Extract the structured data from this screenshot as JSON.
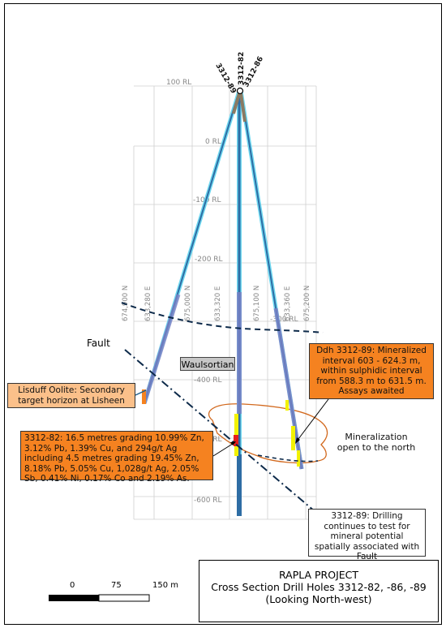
{
  "project_title": "RAPLA PROJECT",
  "section_title": "Cross Section Drill Holes 3312-82, -86, -89",
  "view_direction": "(Looking North-west)",
  "holes": [
    "3312-89",
    "3312-82",
    "3312-86"
  ],
  "rl_labels": [
    "100 RL",
    "0 RL",
    "-100 RL",
    "-200 RL",
    "-300 RL",
    "-400 RL",
    "-500 RL",
    "-600 RL"
  ],
  "northing_labels": [
    "674,900 N",
    "675,000 N",
    "675,100 N",
    "675,200 N"
  ],
  "easting_labels": [
    "633,280 E",
    "633,320 E",
    "633,360 E"
  ],
  "labels": {
    "fault": "Fault",
    "waulsortian": "Waulsortian",
    "mineralization": "Mineralization open to the north"
  },
  "callouts": {
    "hole_82": "3312-82: 16.5 metres grading 10.99% Zn, 3.12% Pb, 1.39% Cu, and 294g/t Ag including 4.5 metres grading 19.45% Zn, 8.18% Pb, 5.05% Cu, 1,028g/t Ag, 2.05% Sb, 0.41% Ni, 0.17% Co and 2.19% As.",
    "hole_89": "Ddh 3312-89: Mineralized interval 603 - 624.3 m, within sulphidic interval from 588.3 m to 631.5 m. Assays awaited",
    "lisduff": "Lisduff Oolite: Secondary target horizon at Lisheen",
    "fault_note": "3312-89: Drilling continues to test for mineral potential spatially associated with Fault"
  },
  "scale_bar": {
    "ticks": [
      "0",
      "75",
      "150 m"
    ]
  },
  "colors": {
    "callout_orange": "#f58220",
    "callout_peach": "#fbc08a",
    "hole_outer": "#6fd8f0",
    "hole_inner": "#2e6da4",
    "mineral_yellow": "#f2f200",
    "grade_red": "#e41e1e",
    "envelope": "#d2691e"
  }
}
